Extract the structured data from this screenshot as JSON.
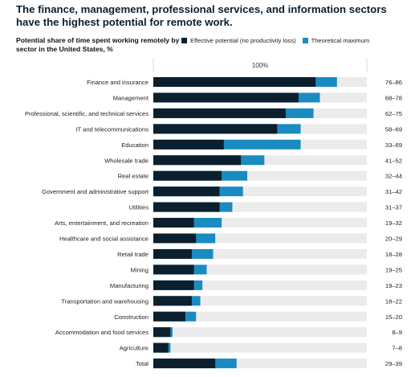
{
  "title": "The finance, management, professional services, and information sectors have the highest potential for remote work.",
  "subtitle": "Potential share of time spent working remotely by sector in the United States, %",
  "legend": {
    "effective": "Effective potential (no productivity loss)",
    "theoretical": "Theoretical maximum"
  },
  "colors": {
    "effective": "#0b1f2e",
    "theoretical": "#1a8bc0",
    "track": "#ebebeb"
  },
  "chart_data": {
    "type": "bar",
    "orientation": "horizontal",
    "stacked": "overlay",
    "reference_label": "100%",
    "xlim": [
      0,
      100
    ],
    "categories": [
      "Finance and insurance",
      "Management",
      "Professional, scientific, and technical services",
      "IT and telecommunications",
      "Education",
      "Wholesale trade",
      "Real estate",
      "Government and administrative support",
      "Utilities",
      "Arts, entertainment, and recreation",
      "Healthcare and social assistance",
      "Retail trade",
      "Mining",
      "Manufacturing",
      "Transportation and warehousing",
      "Construction",
      "Accommodation and food services",
      "Agriculture",
      "Total"
    ],
    "series": [
      {
        "name": "Effective potential (no productivity loss)",
        "values": [
          76,
          68,
          62,
          58,
          33,
          41,
          32,
          31,
          31,
          19,
          20,
          18,
          19,
          19,
          18,
          15,
          8,
          7,
          29
        ]
      },
      {
        "name": "Theoretical maximum",
        "values": [
          86,
          78,
          75,
          69,
          69,
          52,
          44,
          42,
          37,
          32,
          29,
          28,
          25,
          23,
          22,
          20,
          9,
          8,
          39
        ]
      }
    ],
    "range_labels": [
      "76–86",
      "68–78",
      "62–75",
      "58–69",
      "33–69",
      "41–52",
      "32–44",
      "31–42",
      "31–37",
      "19–32",
      "20–29",
      "18–28",
      "19–25",
      "19–23",
      "18–22",
      "15–20",
      "8–9",
      "7–8",
      "29–39"
    ]
  }
}
